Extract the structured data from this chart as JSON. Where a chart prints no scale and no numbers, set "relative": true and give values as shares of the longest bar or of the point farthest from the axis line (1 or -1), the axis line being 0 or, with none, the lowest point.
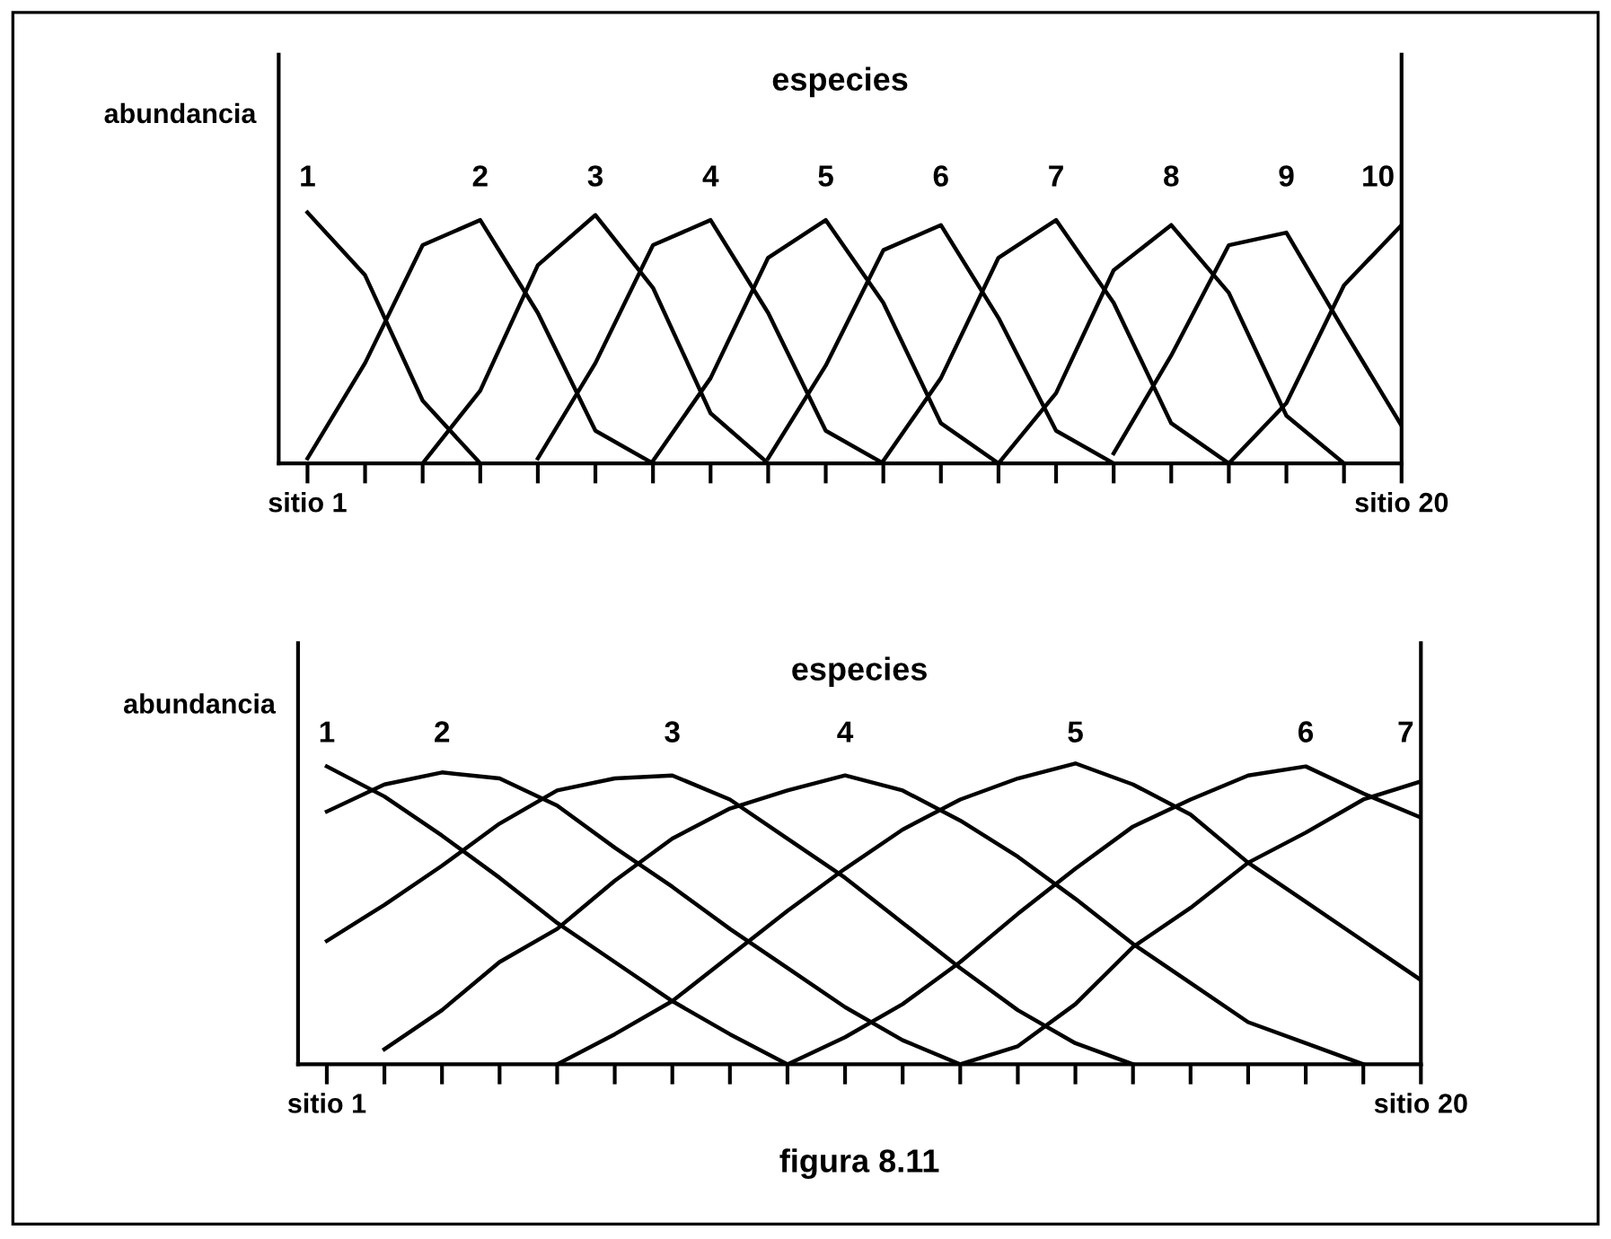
{
  "chart_data": [
    {
      "type": "line",
      "title": "especies",
      "ylabel": "abundancia",
      "relative": true,
      "legend": false,
      "grid": false,
      "marker": "none",
      "line_style": "solid",
      "tick_labels": "x",
      "categories": [
        "sitio 1",
        null,
        null,
        null,
        null,
        null,
        null,
        null,
        null,
        null,
        null,
        null,
        null,
        null,
        null,
        null,
        null,
        null,
        null,
        "sitio 20"
      ],
      "series": [
        {
          "name": "1",
          "color": "#000000",
          "values": [
            1,
            0.75,
            0.25,
            0,
            null,
            null,
            null,
            null,
            null,
            null,
            null,
            null,
            null,
            null,
            null,
            null,
            null,
            null,
            null,
            null
          ]
        },
        {
          "name": "2",
          "color": "#000000",
          "values": [
            0.02,
            0.4,
            0.87,
            0.97,
            0.6,
            0.13,
            0,
            null,
            null,
            null,
            null,
            null,
            null,
            null,
            null,
            null,
            null,
            null,
            null,
            null
          ]
        },
        {
          "name": "3",
          "color": "#000000",
          "values": [
            null,
            null,
            0,
            0.29,
            0.79,
            0.99,
            0.7,
            0.2,
            0,
            null,
            null,
            null,
            null,
            null,
            null,
            null,
            null,
            null,
            null,
            null
          ]
        },
        {
          "name": "4",
          "color": "#000000",
          "values": [
            null,
            null,
            null,
            null,
            0.02,
            0.4,
            0.87,
            0.97,
            0.6,
            0.13,
            0,
            null,
            null,
            null,
            null,
            null,
            null,
            null,
            null,
            null
          ]
        },
        {
          "name": "5",
          "color": "#000000",
          "values": [
            null,
            null,
            null,
            null,
            null,
            null,
            0.01,
            0.34,
            0.82,
            0.97,
            0.64,
            0.16,
            0,
            null,
            null,
            null,
            null,
            null,
            null,
            null
          ]
        },
        {
          "name": "6",
          "color": "#000000",
          "values": [
            null,
            null,
            null,
            null,
            null,
            null,
            null,
            null,
            0.02,
            0.39,
            0.85,
            0.95,
            0.58,
            0.13,
            0,
            null,
            null,
            null,
            null,
            null
          ]
        },
        {
          "name": "7",
          "color": "#000000",
          "values": [
            null,
            null,
            null,
            null,
            null,
            null,
            null,
            null,
            null,
            null,
            0.01,
            0.34,
            0.82,
            0.97,
            0.64,
            0.16,
            0,
            null,
            null,
            null
          ]
        },
        {
          "name": "8",
          "color": "#000000",
          "values": [
            null,
            null,
            null,
            null,
            null,
            null,
            null,
            null,
            null,
            null,
            null,
            null,
            0,
            0.28,
            0.77,
            0.95,
            0.68,
            0.19,
            0,
            null
          ]
        },
        {
          "name": "9",
          "color": "#000000",
          "values": [
            null,
            null,
            null,
            null,
            null,
            null,
            null,
            null,
            null,
            null,
            null,
            null,
            null,
            null,
            0.04,
            0.43,
            0.87,
            0.92,
            0.53,
            0.15
          ]
        },
        {
          "name": "10",
          "color": "#000000",
          "values": [
            null,
            null,
            null,
            null,
            null,
            null,
            null,
            null,
            null,
            null,
            null,
            null,
            null,
            null,
            null,
            null,
            0,
            0.24,
            0.71,
            0.95
          ]
        }
      ]
    },
    {
      "type": "line",
      "title": "especies",
      "ylabel": "abundancia",
      "relative": true,
      "legend": false,
      "grid": false,
      "marker": "none",
      "line_style": "solid",
      "tick_labels": "x",
      "categories": [
        "sitio 1",
        null,
        null,
        null,
        null,
        null,
        null,
        null,
        null,
        null,
        null,
        null,
        null,
        null,
        null,
        null,
        null,
        null,
        null,
        "sitio 20"
      ],
      "annotations": [
        "figura 8.11"
      ],
      "series": [
        {
          "name": "1",
          "color": "#000000",
          "values": [
            0.99,
            0.89,
            0.76,
            0.62,
            0.47,
            0.34,
            0.21,
            0.1,
            0,
            null,
            null,
            null,
            null,
            null,
            null,
            null,
            null,
            null,
            null,
            null
          ]
        },
        {
          "name": "2",
          "color": "#000000",
          "values": [
            0.84,
            0.93,
            0.97,
            0.95,
            0.86,
            0.72,
            0.59,
            0.45,
            0.32,
            0.19,
            0.08,
            0,
            null,
            null,
            null,
            null,
            null,
            null,
            null,
            null
          ]
        },
        {
          "name": "3",
          "color": "#000000",
          "values": [
            0.41,
            0.53,
            0.66,
            0.8,
            0.91,
            0.95,
            0.96,
            0.88,
            0.75,
            0.62,
            0.47,
            0.32,
            0.18,
            0.07,
            0,
            null,
            null,
            null,
            null,
            null
          ]
        },
        {
          "name": "4",
          "color": "#000000",
          "values": [
            null,
            0.05,
            0.18,
            0.34,
            0.45,
            0.61,
            0.75,
            0.85,
            0.91,
            0.96,
            0.91,
            0.81,
            0.69,
            0.55,
            0.4,
            0.27,
            0.14,
            0.07,
            0,
            null
          ]
        },
        {
          "name": "5",
          "color": "#000000",
          "values": [
            null,
            null,
            null,
            null,
            0,
            0.1,
            0.21,
            0.36,
            0.51,
            0.65,
            0.78,
            0.88,
            0.95,
            1.0,
            0.93,
            0.83,
            0.67,
            0.54,
            0.41,
            0.28
          ]
        },
        {
          "name": "6",
          "color": "#000000",
          "values": [
            null,
            null,
            null,
            null,
            null,
            null,
            null,
            null,
            0,
            0.09,
            0.2,
            0.34,
            0.5,
            0.65,
            0.79,
            0.88,
            0.96,
            0.99,
            0.9,
            0.82
          ]
        },
        {
          "name": "7",
          "color": "#000000",
          "values": [
            null,
            null,
            null,
            null,
            null,
            null,
            null,
            null,
            null,
            null,
            null,
            0,
            0.06,
            0.2,
            0.39,
            0.52,
            0.67,
            0.77,
            0.88,
            0.94
          ]
        }
      ]
    }
  ]
}
